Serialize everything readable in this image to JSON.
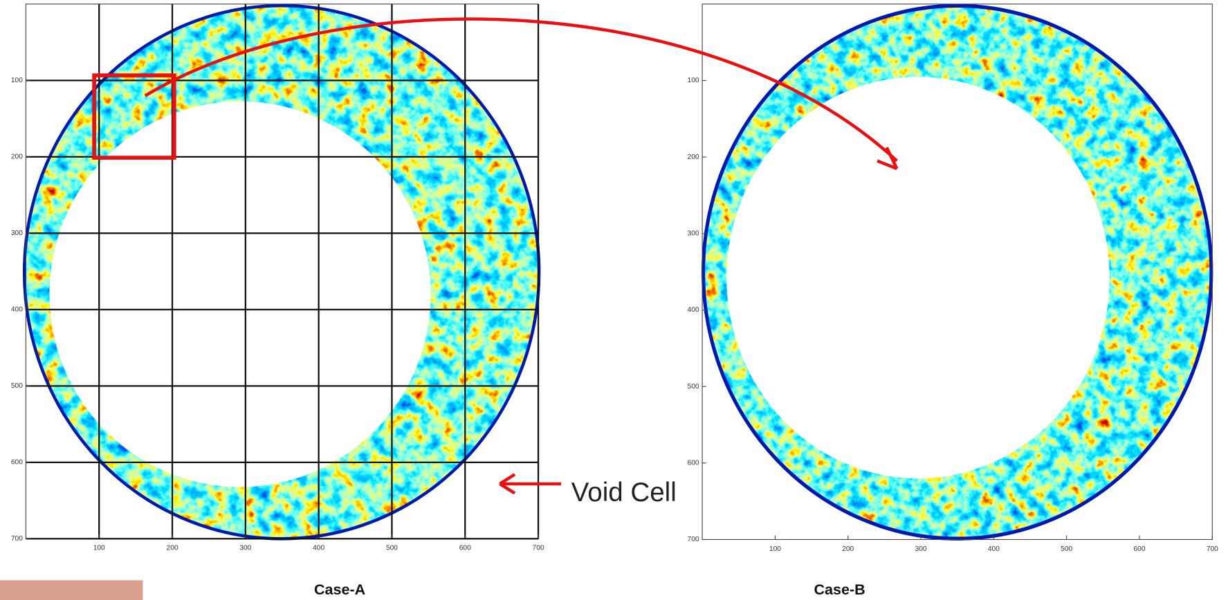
{
  "panels": [
    {
      "caption": "Case-A",
      "xlim": [
        0,
        700
      ],
      "ylim": [
        0,
        700
      ],
      "y_reversed": true,
      "xticks": [
        100,
        200,
        300,
        400,
        500,
        600,
        700
      ],
      "yticks": [
        100,
        200,
        300,
        400,
        500,
        600,
        700
      ],
      "grid": true
    },
    {
      "caption": "Case-B",
      "xlim": [
        0,
        700
      ],
      "ylim": [
        0,
        700
      ],
      "y_reversed": true,
      "xticks": [
        100,
        200,
        300,
        400,
        500,
        600,
        700
      ],
      "yticks": [
        100,
        200,
        300,
        400,
        500,
        600,
        700
      ],
      "grid": false
    }
  ],
  "annotation": "Void Cell"
}
